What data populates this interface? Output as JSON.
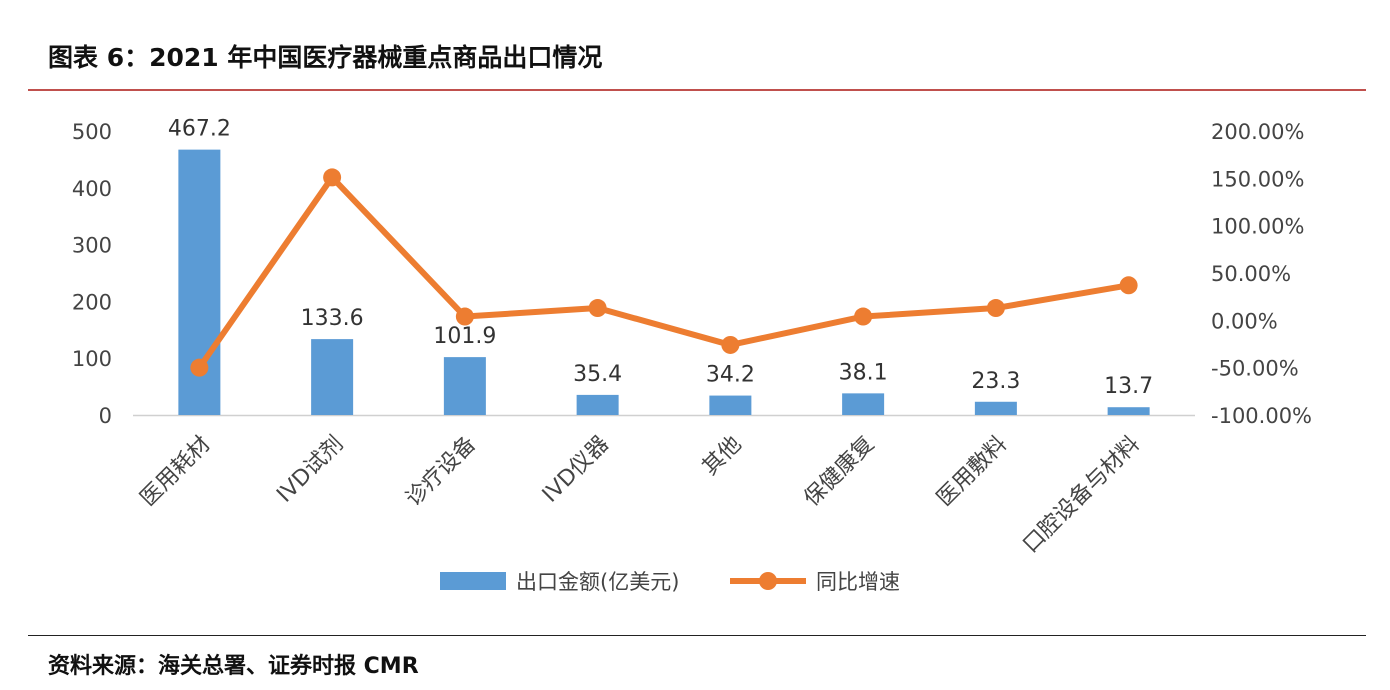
{
  "figure_title": "图表 6：2021 年中国医疗器械重点商品出口情况",
  "source": "资料来源：海关总署、证券时报 CMR",
  "chart_data": {
    "type": "bar",
    "categories": [
      "医用耗材",
      "IVD试剂",
      "诊疗设备",
      "IVD仪器",
      "其他",
      "保健康复",
      "医用敷料",
      "口腔设备与材料"
    ],
    "series": [
      {
        "name": "出口金额(亿美元)",
        "type": "bar",
        "axis": "left",
        "color": "#5b9bd5",
        "values": [
          467.2,
          133.6,
          101.9,
          35.4,
          34.2,
          38.1,
          23.3,
          13.7
        ],
        "labels": [
          "467.2",
          "133.6",
          "101.9",
          "35.4",
          "34.2",
          "38.1",
          "23.3",
          "13.7"
        ]
      },
      {
        "name": "同比增速",
        "type": "line",
        "axis": "right",
        "color": "#ed7d31",
        "values": [
          -50,
          151,
          4,
          13,
          -26,
          4,
          13,
          37
        ]
      }
    ],
    "y_left": {
      "lim": [
        0,
        500
      ],
      "ticks": [
        0,
        100,
        200,
        300,
        400,
        500
      ],
      "tick_labels": [
        "0",
        "100",
        "200",
        "300",
        "400",
        "500"
      ]
    },
    "y_right": {
      "lim": [
        -100,
        200
      ],
      "ticks": [
        -100,
        -50,
        0,
        50,
        100,
        150,
        200
      ],
      "tick_labels": [
        "-100.00%",
        "-50.00%",
        "0.00%",
        "50.00%",
        "100.00%",
        "150.00%",
        "200.00%"
      ]
    },
    "grid": false,
    "legend_position": "bottom"
  }
}
